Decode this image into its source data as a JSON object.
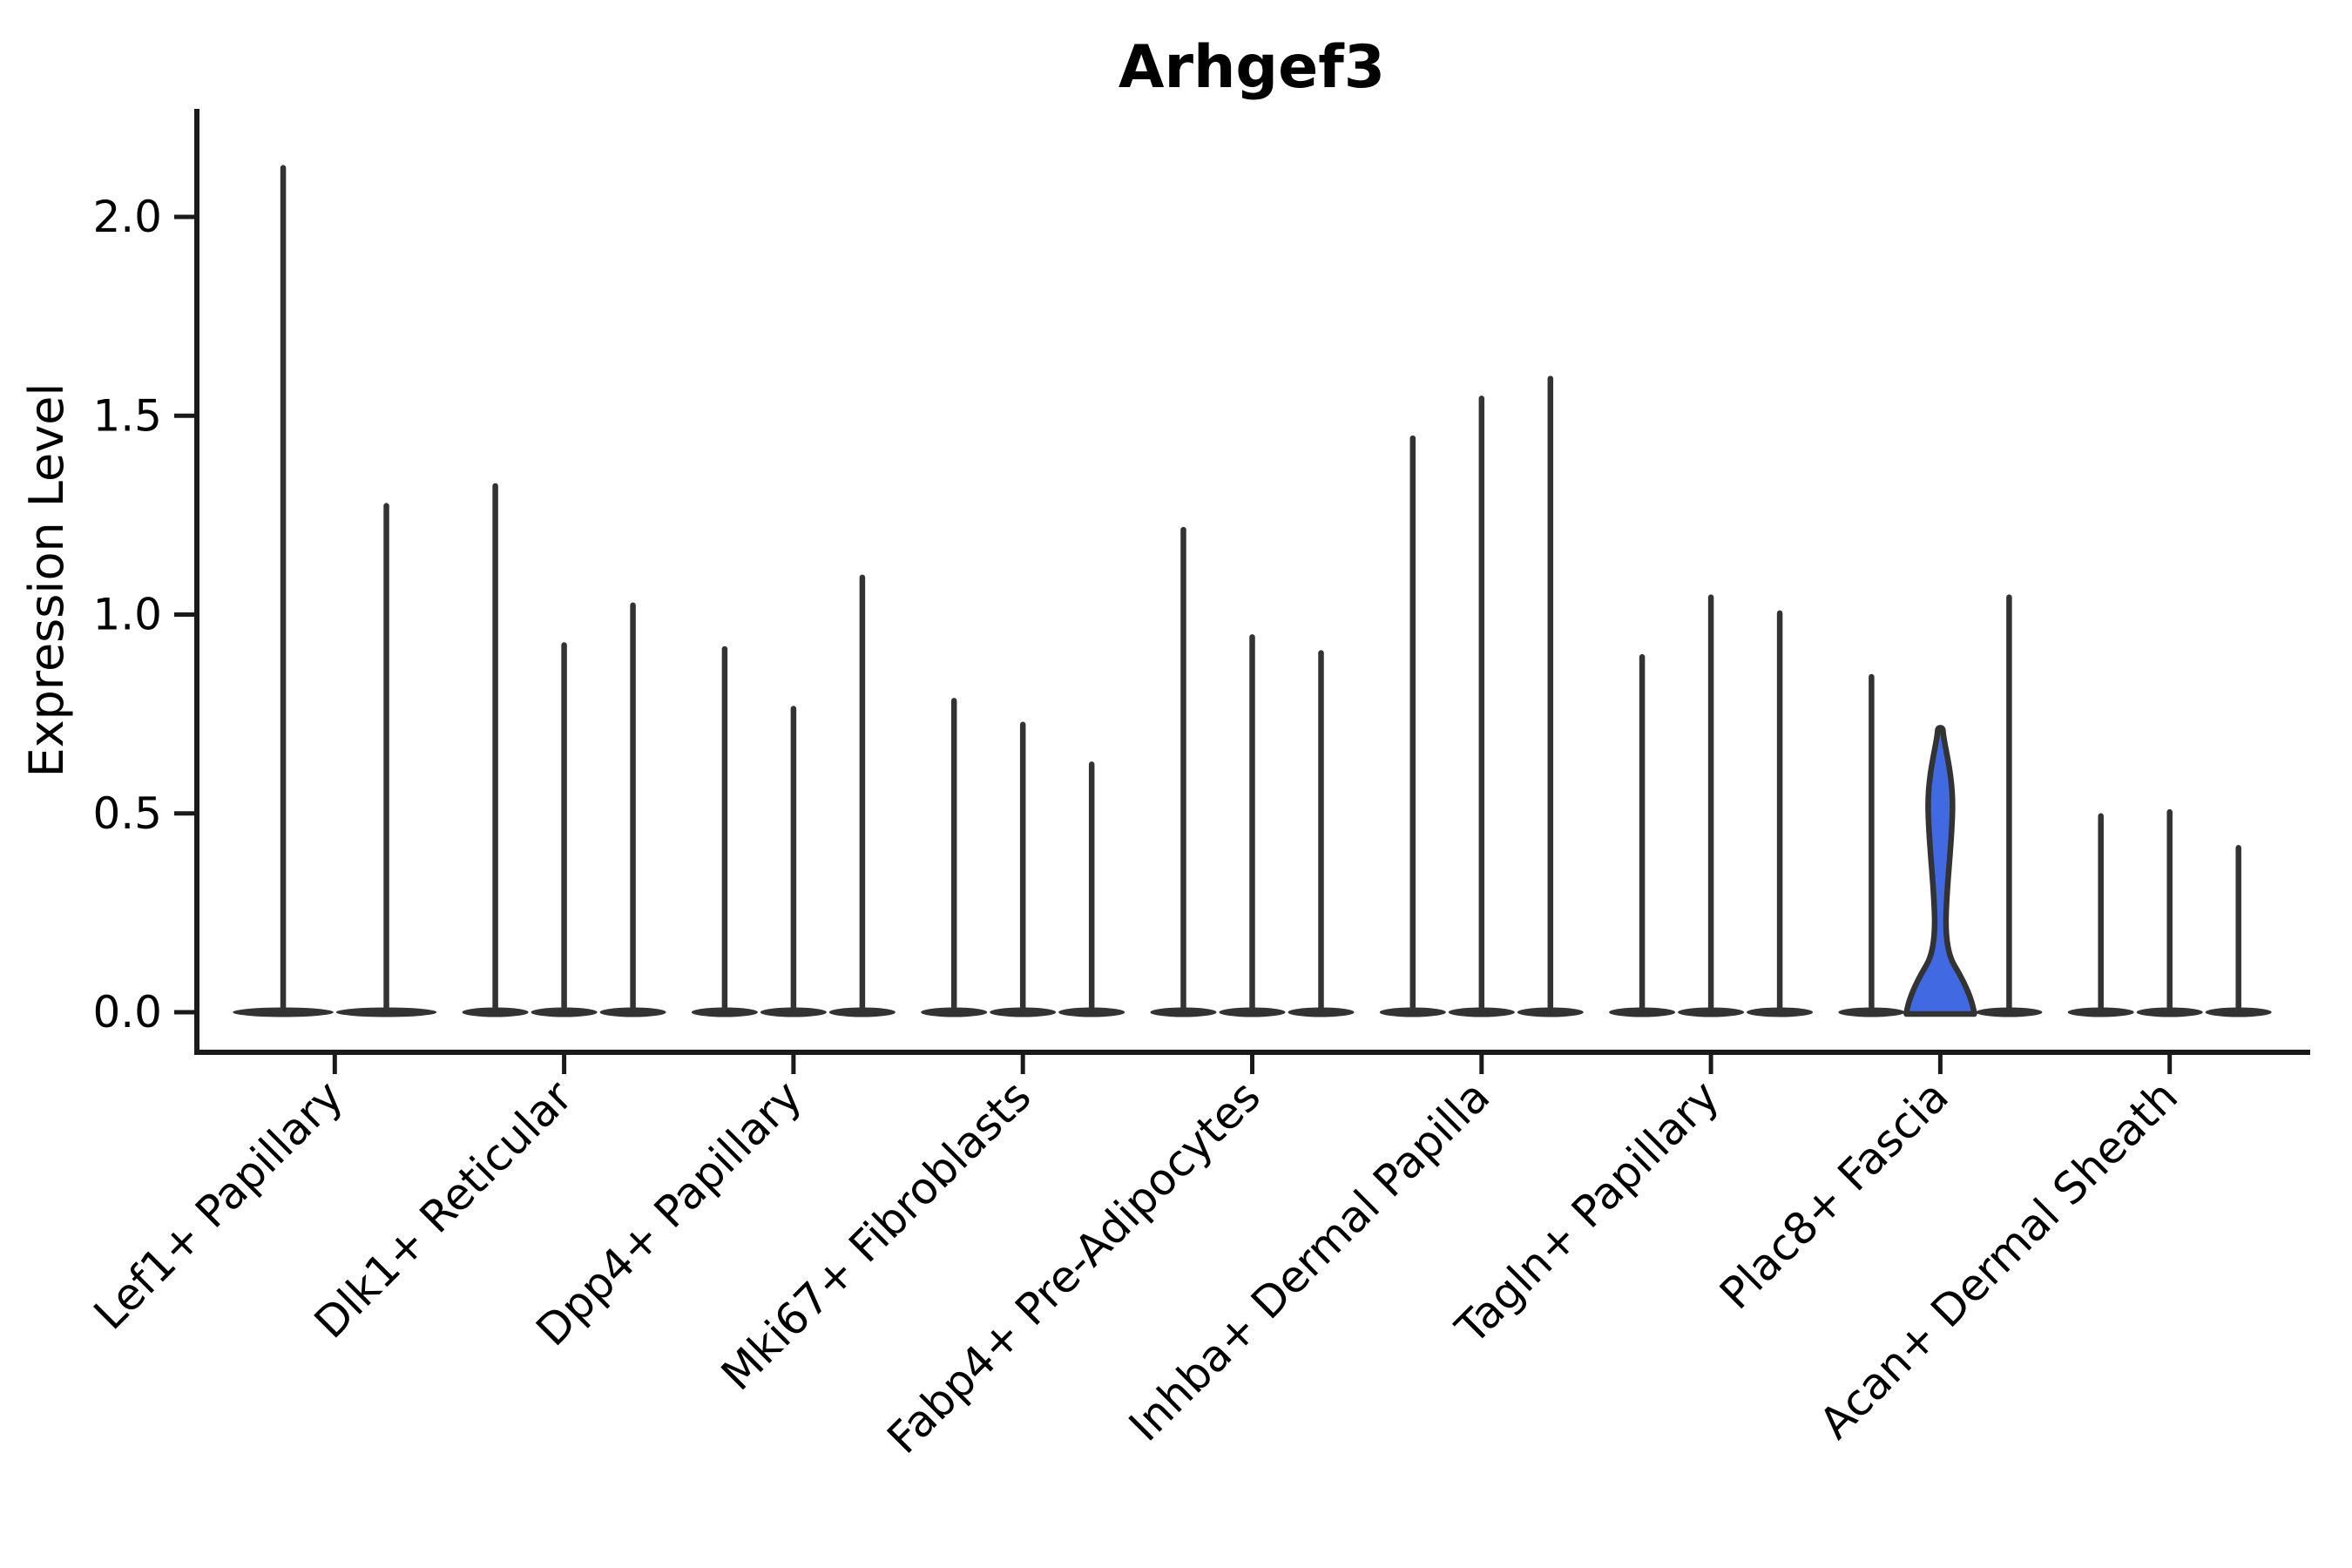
{
  "title": "Arhgef3",
  "ylabel": "Expression Level",
  "chart_data": {
    "type": "violin",
    "title": "Arhgef3",
    "xlabel": "",
    "ylabel": "Expression Level",
    "ylim": [
      -0.1,
      2.27
    ],
    "yticks": [
      "0.0",
      "0.5",
      "1.0",
      "1.5",
      "2.0"
    ],
    "ytick_values": [
      0.0,
      0.5,
      1.0,
      1.5,
      2.0
    ],
    "grid": false,
    "legend": "none",
    "categories": [
      "Lef1+ Papillary",
      "Dlk1+ Reticular",
      "Dpp4+ Papillary",
      "Mki67+ Fibroblasts",
      "Fabp4+ Pre-Adipocytes",
      "Inhba+ Dermal Papilla",
      "Tagln+ Papillary",
      "Plac8+ Fascia",
      "Acan+ Dermal Sheath"
    ],
    "groups": [
      {
        "label": "Lef1+ Papillary",
        "violins": [
          {
            "max": 2.13
          },
          {
            "max": 1.28
          }
        ]
      },
      {
        "label": "Dlk1+ Reticular",
        "violins": [
          {
            "max": 1.33
          },
          {
            "max": 0.93
          },
          {
            "max": 1.03
          }
        ]
      },
      {
        "label": "Dpp4+ Papillary",
        "violins": [
          {
            "max": 0.92
          },
          {
            "max": 0.77
          },
          {
            "max": 1.1
          }
        ]
      },
      {
        "label": "Mki67+ Fibroblasts",
        "violins": [
          {
            "max": 0.79
          },
          {
            "max": 0.73
          },
          {
            "max": 0.63
          }
        ]
      },
      {
        "label": "Fabp4+ Pre-Adipocytes",
        "violins": [
          {
            "max": 1.22
          },
          {
            "max": 0.95
          },
          {
            "max": 0.91
          }
        ]
      },
      {
        "label": "Inhba+ Dermal Papilla",
        "violins": [
          {
            "max": 1.45
          },
          {
            "max": 1.55
          },
          {
            "max": 1.6
          }
        ]
      },
      {
        "label": "Tagln+ Papillary",
        "violins": [
          {
            "max": 0.9
          },
          {
            "max": 1.05
          },
          {
            "max": 1.01
          }
        ]
      },
      {
        "label": "Plac8+ Fascia",
        "violins": [
          {
            "max": 0.85
          },
          {
            "max": 0.72,
            "highlight": true
          },
          {
            "max": 1.05
          }
        ]
      },
      {
        "label": "Acan+ Dermal Sheath",
        "violins": [
          {
            "max": 0.5
          },
          {
            "max": 0.51
          },
          {
            "max": 0.42
          }
        ]
      }
    ],
    "colors": {
      "highlight_fill": "#4169E1",
      "violin_stroke": "#333333",
      "axis_line": "#1a1a1a",
      "text": "#000000",
      "background": "#ffffff"
    }
  }
}
